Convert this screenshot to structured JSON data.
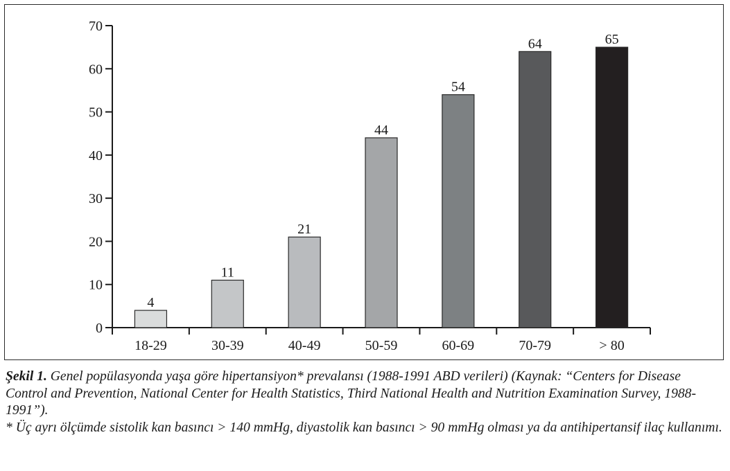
{
  "chart_data": {
    "type": "bar",
    "categories": [
      "18-29",
      "30-39",
      "40-49",
      "50-59",
      "60-69",
      "70-79",
      "> 80"
    ],
    "values": [
      4,
      11,
      21,
      44,
      54,
      64,
      65
    ],
    "data_labels": [
      "4",
      "11",
      "21",
      "44",
      "54",
      "64",
      "65"
    ],
    "bar_colors": [
      "#dadcdc",
      "#c4c6c8",
      "#b9bbbe",
      "#a4a6a8",
      "#7d8183",
      "#58595b",
      "#231f20"
    ],
    "title": "",
    "xlabel": "",
    "ylabel": "",
    "ylim": [
      0,
      70
    ],
    "yticks": [
      0,
      10,
      20,
      30,
      40,
      50,
      60,
      70
    ],
    "grid": false,
    "legend": "none"
  },
  "caption": {
    "figure_label": "Şekil 1.",
    "text": " Genel popülasyonda yaşa göre hipertansiyon* prevalansı (1988-1991 ABD verileri) (Kaynak: “Centers for Disease Control and Prevention, National Center for Health Statistics, Third National Health and Nutrition Examination Survey, 1988-1991”).",
    "footnote": "* Üç ayrı ölçümde sistolik kan basıncı > 140 mmHg, diyastolik kan basıncı > 90 mmHg olması ya da antihipertansif ilaç kullanımı."
  }
}
